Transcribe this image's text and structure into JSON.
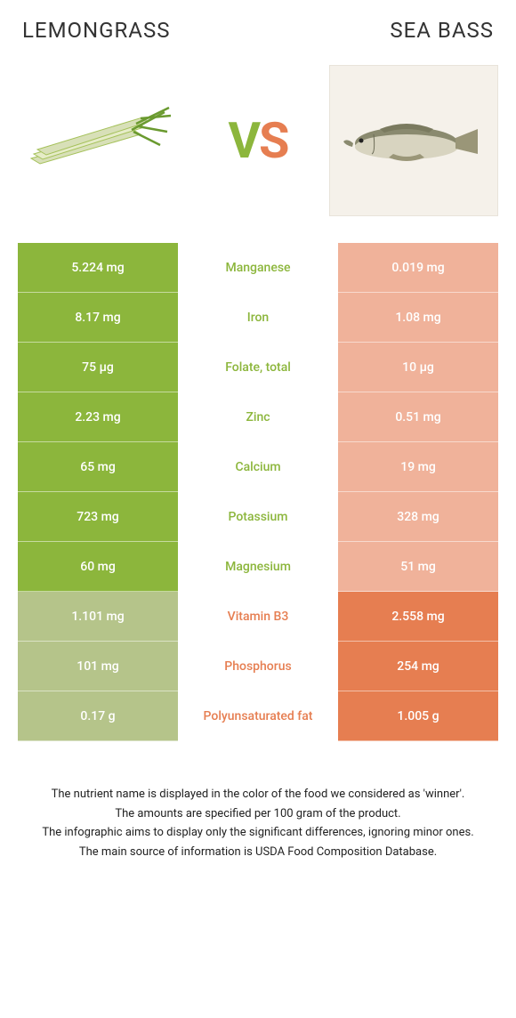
{
  "header": {
    "left_title": "LEMONGRASS",
    "right_title": "SEA BASS",
    "vs_v": "V",
    "vs_s": "S"
  },
  "colors": {
    "green": "#8cb63c",
    "green_muted": "#b5c48a",
    "orange": "#e67e51",
    "orange_muted": "#f0b29a",
    "white": "#ffffff"
  },
  "rows": [
    {
      "left": "5.224 mg",
      "label": "Manganese",
      "right": "0.019 mg",
      "winner": "left"
    },
    {
      "left": "8.17 mg",
      "label": "Iron",
      "right": "1.08 mg",
      "winner": "left"
    },
    {
      "left": "75 µg",
      "label": "Folate, total",
      "right": "10 µg",
      "winner": "left"
    },
    {
      "left": "2.23 mg",
      "label": "Zinc",
      "right": "0.51 mg",
      "winner": "left"
    },
    {
      "left": "65 mg",
      "label": "Calcium",
      "right": "19 mg",
      "winner": "left"
    },
    {
      "left": "723 mg",
      "label": "Potassium",
      "right": "328 mg",
      "winner": "left"
    },
    {
      "left": "60 mg",
      "label": "Magnesium",
      "right": "51 mg",
      "winner": "left"
    },
    {
      "left": "1.101 mg",
      "label": "Vitamin B3",
      "right": "2.558 mg",
      "winner": "right"
    },
    {
      "left": "101 mg",
      "label": "Phosphorus",
      "right": "254 mg",
      "winner": "right"
    },
    {
      "left": "0.17 g",
      "label": "Polyunsaturated fat",
      "right": "1.005 g",
      "winner": "right"
    }
  ],
  "footer": {
    "line1": "The nutrient name is displayed in the color of the food we considered as 'winner'.",
    "line2": "The amounts are specified per 100 gram of the product.",
    "line3": "The infographic aims to display only the significant differences, ignoring minor ones.",
    "line4": "The main source of information is USDA Food Composition Database."
  }
}
